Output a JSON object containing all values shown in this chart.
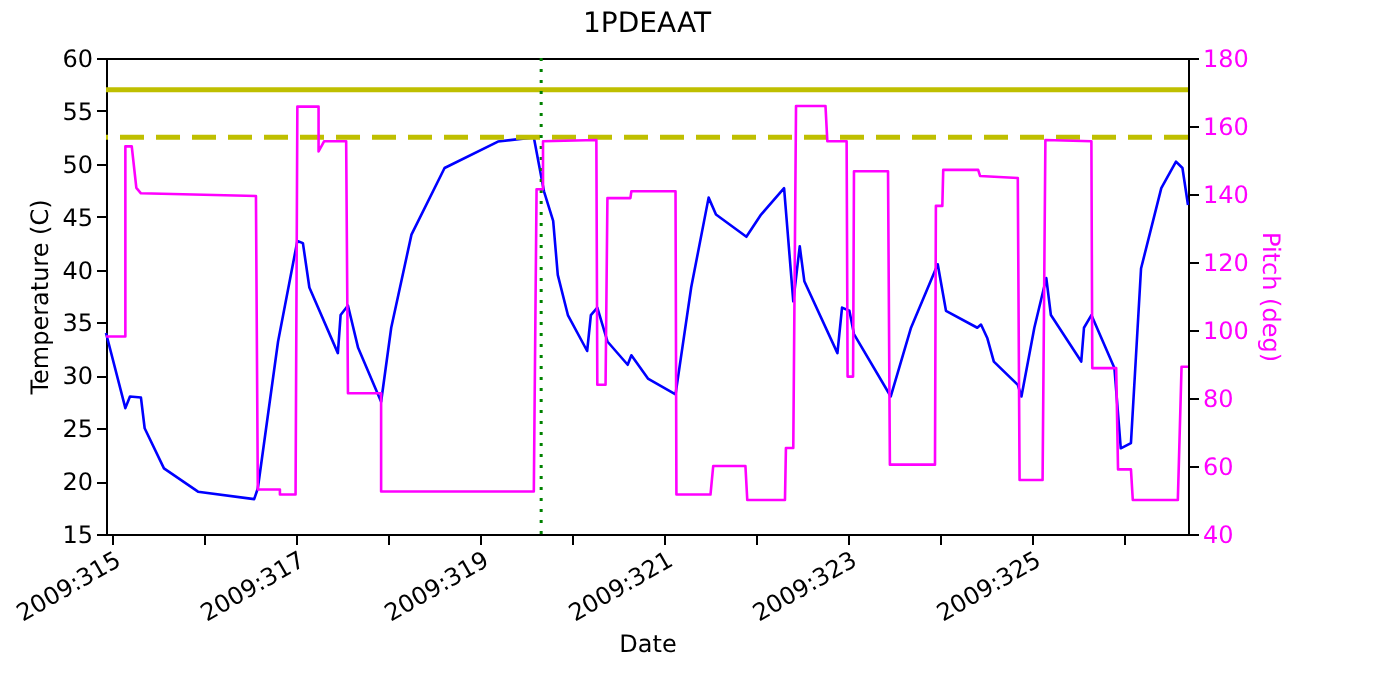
{
  "chart_data": {
    "type": "line",
    "title": "1PDEAAT",
    "xlabel": "Date",
    "ylabel": "Temperature (C)",
    "y2label": "Pitch (deg)",
    "xlim": [
      "2009-11-10T22:19",
      "2009-11-22T16:34"
    ],
    "xticks": [
      {
        "value": "2009-11-11",
        "label": "2009:315"
      },
      {
        "value": "2009-11-12",
        "label": null
      },
      {
        "value": "2009-11-13",
        "label": "2009:317"
      },
      {
        "value": "2009-11-14",
        "label": null
      },
      {
        "value": "2009-11-15",
        "label": "2009:319"
      },
      {
        "value": "2009-11-16",
        "label": null
      },
      {
        "value": "2009-11-17",
        "label": "2009:321"
      },
      {
        "value": "2009-11-18",
        "label": null
      },
      {
        "value": "2009-11-19",
        "label": "2009:323"
      },
      {
        "value": "2009-11-20",
        "label": null
      },
      {
        "value": "2009-11-21",
        "label": "2009:325"
      },
      {
        "value": "2009-11-22",
        "label": null
      }
    ],
    "ylim": [
      15,
      60
    ],
    "yticks": [
      15,
      20,
      25,
      30,
      35,
      40,
      45,
      50,
      55,
      60
    ],
    "y2lim": [
      40,
      180
    ],
    "y2ticks": [
      40,
      60,
      80,
      100,
      120,
      140,
      160,
      180
    ],
    "grid": false,
    "series": [
      {
        "type": "line",
        "color": "#0000ff",
        "x": [
          "2009-11-10T22:19",
          "2009-11-11T03:22",
          "2009-11-11T04:34",
          "2009-11-11T07:26",
          "2009-11-11T08:24",
          "2009-11-11T13:26",
          "2009-11-11T22:19",
          "2009-11-12T12:58",
          "2009-11-12T13:55",
          "2009-11-12T19:12",
          "2009-11-13T00:14",
          "2009-11-13T01:41",
          "2009-11-13T03:22",
          "2009-11-13T10:48",
          "2009-11-13T11:31",
          "2009-11-13T13:26",
          "2009-11-13T16:05",
          "2009-11-13T22:05",
          "2009-11-14T00:43",
          "2009-11-14T06:00",
          "2009-11-14T14:38",
          "2009-11-15T04:34",
          "2009-11-15T13:55",
          "2009-11-15T16:34",
          "2009-11-15T18:58",
          "2009-11-15T20:10",
          "2009-11-15T22:48",
          "2009-11-16T03:50",
          "2009-11-16T04:48",
          "2009-11-16T06:29",
          "2009-11-16T09:07",
          "2009-11-16T14:24",
          "2009-11-16T15:22",
          "2009-11-16T19:41",
          "2009-11-17T02:53",
          "2009-11-17T06:58",
          "2009-11-17T11:31",
          "2009-11-17T13:26",
          "2009-11-17T21:22",
          "2009-11-18T01:12",
          "2009-11-18T07:12",
          "2009-11-18T09:36",
          "2009-11-18T11:17",
          "2009-11-18T12:29",
          "2009-11-18T21:07",
          "2009-11-18T22:19",
          "2009-11-19T00:14",
          "2009-11-19T01:26",
          "2009-11-19T11:02",
          "2009-11-19T16:19",
          "2009-11-19T23:17",
          "2009-11-20T01:26",
          "2009-11-20T09:36",
          "2009-11-20T10:34",
          "2009-11-20T12:14",
          "2009-11-20T13:55",
          "2009-11-20T20:10",
          "2009-11-20T21:07",
          "2009-11-21T00:29",
          "2009-11-21T03:36",
          "2009-11-21T04:48",
          "2009-11-21T12:43",
          "2009-11-21T13:26",
          "2009-11-21T15:22",
          "2009-11-21T21:22",
          "2009-11-21T23:02",
          "2009-11-22T01:41",
          "2009-11-22T04:19",
          "2009-11-22T09:36",
          "2009-11-22T13:26",
          "2009-11-22T15:07",
          "2009-11-22T16:34"
        ],
        "values": [
          34.0,
          26.9,
          28.0,
          27.9,
          25.0,
          21.2,
          19.0,
          18.3,
          19.3,
          33.2,
          42.7,
          42.5,
          38.3,
          32.1,
          35.7,
          36.6,
          32.6,
          27.5,
          34.5,
          43.3,
          49.6,
          52.1,
          52.5,
          47.4,
          44.6,
          39.5,
          35.7,
          32.3,
          35.7,
          36.4,
          33.2,
          31.0,
          31.9,
          29.7,
          28.2,
          38.3,
          46.8,
          45.2,
          43.1,
          45.2,
          47.7,
          37.0,
          42.2,
          38.9,
          32.1,
          36.4,
          36.1,
          33.9,
          28.0,
          34.5,
          40.5,
          36.1,
          34.5,
          34.8,
          33.5,
          31.3,
          29.1,
          28.0,
          34.5,
          39.2,
          35.7,
          31.3,
          34.5,
          35.7,
          30.7,
          23.1,
          23.6,
          40.1,
          47.7,
          50.2,
          49.6,
          46.1
        ]
      },
      {
        "type": "line",
        "axis": "y2",
        "color": "#ff00ff",
        "x": [
          "2009-11-10T22:19",
          "2009-11-11T03:22",
          "2009-11-11T03:22",
          "2009-11-11T05:02",
          "2009-11-11T06:14",
          "2009-11-11T07:26",
          "2009-11-12T13:26",
          "2009-11-12T13:55",
          "2009-11-12T19:41",
          "2009-11-12T19:41",
          "2009-11-12T23:46",
          "2009-11-13T00:14",
          "2009-11-13T05:46",
          "2009-11-13T05:46",
          "2009-11-13T07:12",
          "2009-11-13T12:58",
          "2009-11-13T13:26",
          "2009-11-13T22:05",
          "2009-11-13T22:05",
          "2009-11-15T13:55",
          "2009-11-15T14:38",
          "2009-11-15T16:19",
          "2009-11-15T16:19",
          "2009-11-16T06:14",
          "2009-11-16T06:29",
          "2009-11-16T08:38",
          "2009-11-16T09:07",
          "2009-11-16T15:07",
          "2009-11-16T15:22",
          "2009-11-17T02:53",
          "2009-11-17T03:07",
          "2009-11-17T12:00",
          "2009-11-17T12:43",
          "2009-11-17T21:07",
          "2009-11-17T21:36",
          "2009-11-18T07:26",
          "2009-11-18T07:41",
          "2009-11-18T09:36",
          "2009-11-18T10:19",
          "2009-11-18T18:00",
          "2009-11-18T18:29",
          "2009-11-18T23:31",
          "2009-11-18T23:46",
          "2009-11-19T01:12",
          "2009-11-19T01:26",
          "2009-11-19T10:19",
          "2009-11-19T10:48",
          "2009-11-19T22:34",
          "2009-11-19T22:48",
          "2009-11-20T00:29",
          "2009-11-20T00:43",
          "2009-11-20T09:50",
          "2009-11-20T10:19",
          "2009-11-20T20:10",
          "2009-11-20T20:38",
          "2009-11-21T02:38",
          "2009-11-21T03:22",
          "2009-11-21T15:22",
          "2009-11-21T15:36",
          "2009-11-21T21:50",
          "2009-11-21T22:19",
          "2009-11-22T01:41",
          "2009-11-22T02:10",
          "2009-11-22T13:55",
          "2009-11-22T14:53",
          "2009-11-22T16:34"
        ],
        "values": [
          98.1,
          98.1,
          154,
          154,
          141.8,
          140.2,
          139.4,
          53.1,
          53.1,
          51.6,
          51.6,
          165.7,
          165.7,
          152.5,
          155.5,
          155.5,
          81.4,
          81.4,
          52.5,
          52.5,
          141.4,
          141.4,
          155.5,
          155.9,
          83.9,
          83.9,
          138.8,
          138.8,
          140.8,
          140.8,
          51.6,
          51.6,
          60.0,
          60.0,
          50.0,
          50.0,
          65.3,
          65.3,
          165.9,
          165.9,
          155.5,
          155.5,
          86.3,
          86.3,
          146.7,
          146.7,
          60.4,
          60.4,
          136.5,
          136.5,
          147.1,
          147.1,
          145.3,
          144.7,
          55.9,
          55.9,
          155.9,
          155.5,
          88.8,
          88.8,
          59.0,
          59.0,
          50.0,
          50.0,
          89.2,
          89.2
        ]
      }
    ],
    "ref_lines": [
      {
        "axis": "y",
        "value": 57,
        "color": "#bfbf00",
        "line_style": "solid"
      },
      {
        "axis": "y",
        "value": 52.5,
        "color": "#bfbf00",
        "line_style": "dashed"
      },
      {
        "axis": "x",
        "value": "2009-11-15T15:50",
        "color": "#008000",
        "line_style": "dotted"
      }
    ]
  }
}
